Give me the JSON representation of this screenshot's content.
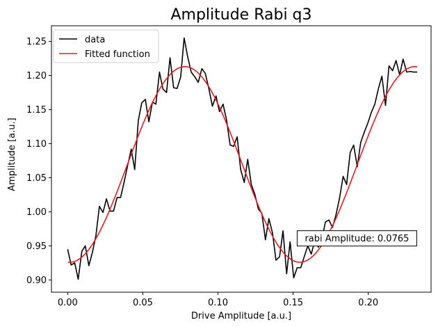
{
  "chart_data": {
    "type": "line",
    "title": "Amplitude Rabi q3",
    "xlabel": "Drive Amplitude [a.u.]",
    "ylabel": "Amplitude [a.u.]",
    "xlim": [
      -0.0108,
      0.2418
    ],
    "ylim": [
      0.882,
      1.273
    ],
    "xticks": [
      0.0,
      0.05,
      0.1,
      0.15,
      0.2
    ],
    "xtick_labels": [
      "0.00",
      "0.05",
      "0.10",
      "0.15",
      "0.20"
    ],
    "yticks": [
      0.9,
      0.95,
      1.0,
      1.05,
      1.1,
      1.15,
      1.2,
      1.25
    ],
    "ytick_labels": [
      "0.90",
      "0.95",
      "1.00",
      "1.05",
      "1.10",
      "1.15",
      "1.20",
      "1.25"
    ],
    "grid": false,
    "legend": "top-left",
    "series": [
      {
        "name": "data",
        "color": "#000000",
        "x": [
          0.0,
          0.0023,
          0.0047,
          0.007,
          0.0094,
          0.0117,
          0.0141,
          0.0164,
          0.0188,
          0.0211,
          0.0235,
          0.0258,
          0.0282,
          0.0305,
          0.0329,
          0.0352,
          0.0376,
          0.0399,
          0.0423,
          0.0446,
          0.047,
          0.0493,
          0.0517,
          0.054,
          0.0564,
          0.0587,
          0.0611,
          0.0634,
          0.0658,
          0.0681,
          0.0705,
          0.0728,
          0.0752,
          0.0775,
          0.0799,
          0.0822,
          0.0846,
          0.0869,
          0.0893,
          0.0916,
          0.094,
          0.0963,
          0.0987,
          0.101,
          0.1034,
          0.1057,
          0.1081,
          0.1104,
          0.1128,
          0.1151,
          0.1175,
          0.1198,
          0.1222,
          0.1245,
          0.1269,
          0.1292,
          0.1316,
          0.1339,
          0.1363,
          0.1386,
          0.141,
          0.1433,
          0.1457,
          0.148,
          0.1504,
          0.1527,
          0.1551,
          0.1574,
          0.1598,
          0.1621,
          0.1645,
          0.1668,
          0.1692,
          0.1715,
          0.1739,
          0.1762,
          0.1786,
          0.1809,
          0.1833,
          0.1856,
          0.188,
          0.1903,
          0.1927,
          0.195,
          0.1974,
          0.1997,
          0.2021,
          0.2044,
          0.2068,
          0.2091,
          0.2115,
          0.2138,
          0.2162,
          0.2185,
          0.2209,
          0.2232,
          0.2256,
          0.2279,
          0.2303,
          0.2326
        ],
        "y": [
          0.945,
          0.922,
          0.925,
          0.901,
          0.942,
          0.95,
          0.921,
          0.94,
          0.965,
          1.008,
          0.999,
          1.019,
          1.001,
          1.001,
          1.021,
          1.021,
          1.044,
          1.068,
          1.092,
          1.062,
          1.134,
          1.16,
          1.165,
          1.132,
          1.161,
          1.158,
          1.205,
          1.18,
          1.175,
          1.226,
          1.182,
          1.181,
          1.198,
          1.255,
          1.227,
          1.205,
          1.198,
          1.19,
          1.21,
          1.203,
          1.18,
          1.155,
          1.17,
          1.147,
          1.158,
          1.135,
          1.098,
          1.096,
          1.11,
          1.062,
          1.043,
          1.077,
          1.04,
          1.026,
          1.004,
          0.998,
          0.959,
          0.99,
          0.969,
          0.929,
          0.934,
          0.972,
          0.909,
          0.956,
          0.903,
          0.918,
          0.918,
          0.934,
          0.95,
          0.938,
          0.958,
          0.948,
          0.96,
          0.985,
          0.988,
          0.977,
          0.996,
          1.02,
          1.052,
          1.04,
          1.087,
          1.098,
          1.066,
          1.102,
          1.117,
          1.13,
          1.146,
          1.158,
          1.181,
          1.199,
          1.156,
          1.214,
          1.207,
          1.222,
          1.201,
          1.224,
          1.205,
          1.206,
          1.205,
          1.205
        ]
      },
      {
        "name": "Fitted function",
        "color": "#e31a1c",
        "model": "cosine",
        "amplitude": 0.1435,
        "offset": 1.0695,
        "period": 0.153,
        "center": 0.078,
        "x_range": [
          0.0,
          0.2326
        ]
      }
    ],
    "annotations": [
      {
        "text": "rabi Amplitude: 0.0765",
        "x": 0.1925,
        "y": 0.961
      }
    ]
  }
}
